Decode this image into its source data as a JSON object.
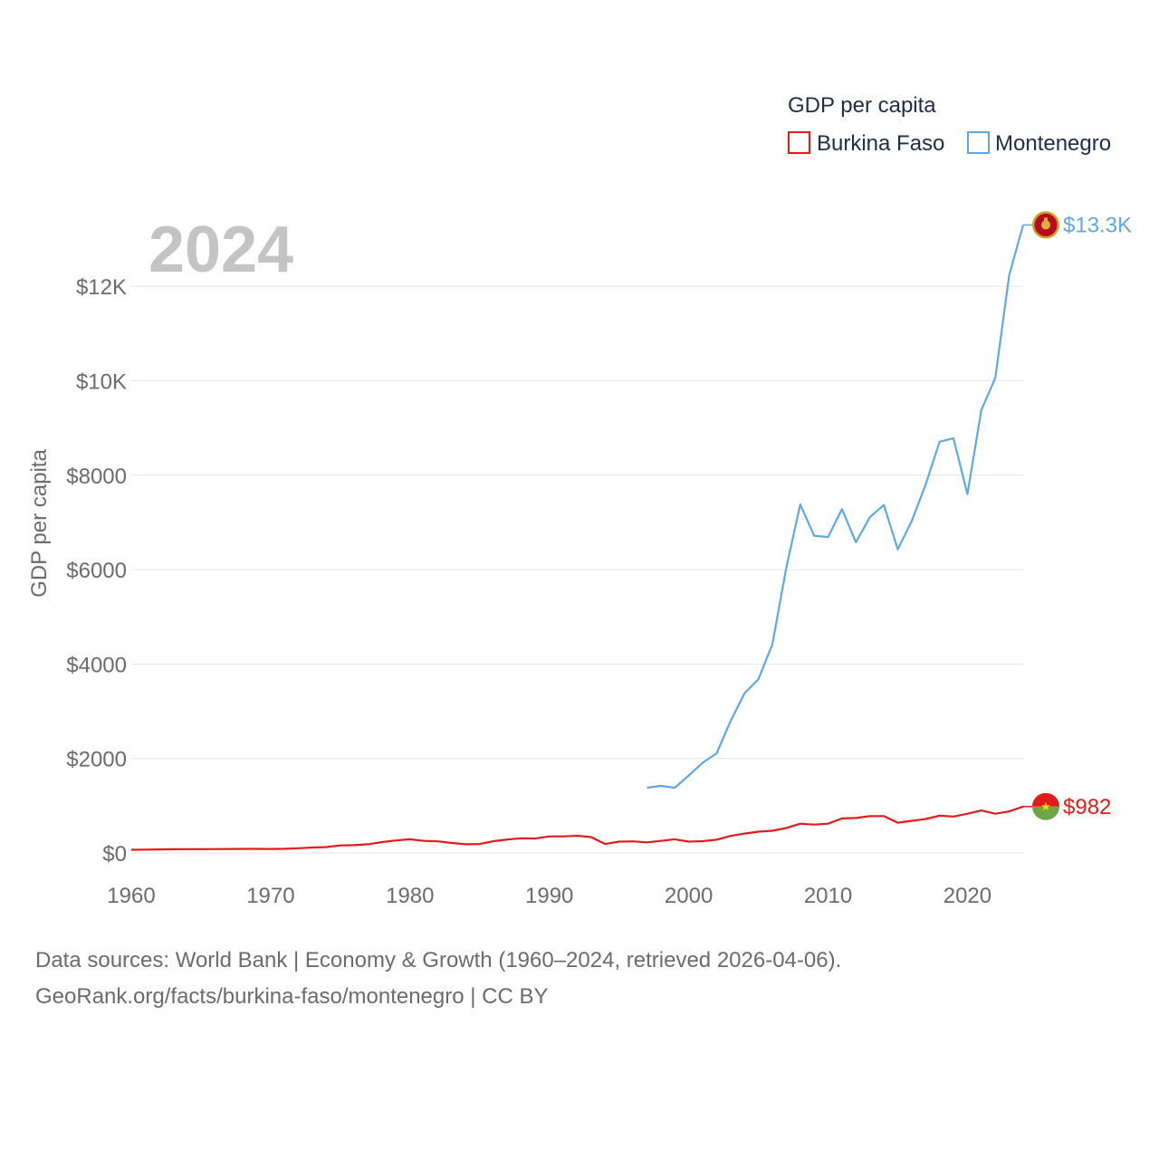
{
  "legend": {
    "title": "GDP per capita",
    "items": [
      {
        "name": "Burkina Faso",
        "color": "#e31a1c"
      },
      {
        "name": "Montenegro",
        "color": "#5fa8e6"
      }
    ]
  },
  "year_label": "2024",
  "footer": {
    "line1": "Data sources: World Bank | Economy & Growth (1960–2024, retrieved 2026-04-06).",
    "line2": "GeoRank.org/facts/burkina-faso/montenegro | CC BY"
  },
  "chart_data": {
    "type": "line",
    "title": "",
    "xlabel": "",
    "ylabel": "GDP per capita",
    "xlim": [
      1960,
      2024
    ],
    "ylim": [
      0,
      13300
    ],
    "yticks": [
      {
        "value": 0,
        "label": "$0"
      },
      {
        "value": 2000,
        "label": "$2000"
      },
      {
        "value": 4000,
        "label": "$4000"
      },
      {
        "value": 6000,
        "label": "$6000"
      },
      {
        "value": 8000,
        "label": "$8000"
      },
      {
        "value": 10000,
        "label": "$10K"
      },
      {
        "value": 12000,
        "label": "$12K"
      }
    ],
    "xticks": [
      {
        "value": 1960,
        "label": "1960"
      },
      {
        "value": 1970,
        "label": "1970"
      },
      {
        "value": 1980,
        "label": "1980"
      },
      {
        "value": 1990,
        "label": "1990"
      },
      {
        "value": 2000,
        "label": "2000"
      },
      {
        "value": 2010,
        "label": "2010"
      },
      {
        "value": 2020,
        "label": "2020"
      }
    ],
    "series": [
      {
        "name": "Burkina Faso",
        "color": "#e31a1c",
        "end_label": "$982",
        "flag": "burkina-faso-flag-icon",
        "x": [
          1960,
          1961,
          1962,
          1963,
          1964,
          1965,
          1966,
          1967,
          1968,
          1969,
          1970,
          1971,
          1972,
          1973,
          1974,
          1975,
          1976,
          1977,
          1978,
          1979,
          1980,
          1981,
          1982,
          1983,
          1984,
          1985,
          1986,
          1987,
          1988,
          1989,
          1990,
          1991,
          1992,
          1993,
          1994,
          1995,
          1996,
          1997,
          1998,
          1999,
          2000,
          2001,
          2002,
          2003,
          2004,
          2005,
          2006,
          2007,
          2008,
          2009,
          2010,
          2011,
          2012,
          2013,
          2014,
          2015,
          2016,
          2017,
          2018,
          2019,
          2020,
          2021,
          2022,
          2023,
          2024
        ],
        "values": [
          68,
          70,
          74,
          78,
          80,
          81,
          83,
          85,
          87,
          86,
          84,
          88,
          100,
          115,
          125,
          160,
          165,
          185,
          230,
          265,
          290,
          255,
          245,
          210,
          185,
          190,
          250,
          285,
          310,
          305,
          350,
          350,
          365,
          335,
          190,
          240,
          245,
          225,
          255,
          290,
          240,
          250,
          280,
          360,
          410,
          450,
          470,
          530,
          620,
          600,
          620,
          730,
          740,
          780,
          780,
          640,
          680,
          720,
          790,
          770,
          830,
          900,
          830,
          880,
          982
        ]
      },
      {
        "name": "Montenegro",
        "color": "#5fa8e6",
        "end_label": "$13.3K",
        "flag": "montenegro-flag-icon",
        "x": [
          1997,
          1998,
          1999,
          2000,
          2001,
          2002,
          2003,
          2004,
          2005,
          2006,
          2007,
          2008,
          2009,
          2010,
          2011,
          2012,
          2013,
          2014,
          2015,
          2016,
          2017,
          2018,
          2019,
          2020,
          2021,
          2022,
          2023,
          2024
        ],
        "values": [
          1380,
          1420,
          1380,
          1640,
          1910,
          2110,
          2790,
          3380,
          3680,
          4420,
          6040,
          7380,
          6720,
          6690,
          7280,
          6580,
          7110,
          7370,
          6430,
          7030,
          7800,
          8710,
          8780,
          7600,
          9380,
          10060,
          12240,
          13300
        ]
      }
    ]
  }
}
